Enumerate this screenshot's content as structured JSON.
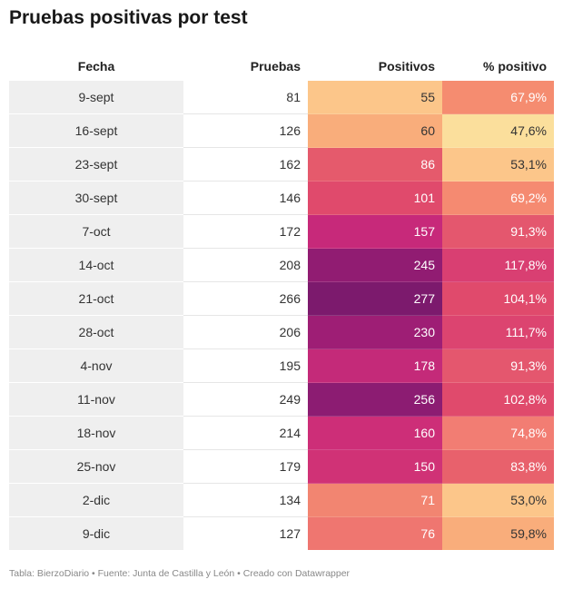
{
  "title": "Pruebas positivas por test",
  "footer": "Tabla: BierzoDiario • Fuente: Junta de Castilla y León • Creado con Datawrapper",
  "chart_data": {
    "type": "table",
    "title": "Pruebas positivas por test",
    "columns": [
      "Fecha",
      "Pruebas",
      "Positivos",
      "% positivo"
    ],
    "rows": [
      {
        "fecha": "9-sept",
        "pruebas": "81",
        "positivos": "55",
        "pct": "67,9%",
        "pos_color": "#fcc68a",
        "pct_color": "#f58c70"
      },
      {
        "fecha": "16-sept",
        "pruebas": "126",
        "positivos": "60",
        "pct": "47,6%",
        "pos_color": "#f9ad7b",
        "pct_color": "#fbdf9c"
      },
      {
        "fecha": "23-sept",
        "pruebas": "162",
        "positivos": "86",
        "pct": "53,1%",
        "pos_color": "#e55a6c",
        "pct_color": "#fcc68a"
      },
      {
        "fecha": "30-sept",
        "pruebas": "146",
        "positivos": "101",
        "pct": "69,2%",
        "pos_color": "#e04a6c",
        "pct_color": "#f58a71"
      },
      {
        "fecha": "7-oct",
        "pruebas": "172",
        "positivos": "157",
        "pct": "91,3%",
        "pos_color": "#c7297a",
        "pct_color": "#e4576e"
      },
      {
        "fecha": "14-oct",
        "pruebas": "208",
        "positivos": "245",
        "pct": "117,8%",
        "pos_color": "#911c72",
        "pct_color": "#d93f72"
      },
      {
        "fecha": "21-oct",
        "pruebas": "266",
        "positivos": "277",
        "pct": "104,1%",
        "pos_color": "#7c1a6d",
        "pct_color": "#e04a6c"
      },
      {
        "fecha": "28-oct",
        "pruebas": "206",
        "positivos": "230",
        "pct": "111,7%",
        "pos_color": "#9e1e75",
        "pct_color": "#dc4470"
      },
      {
        "fecha": "4-nov",
        "pruebas": "195",
        "positivos": "178",
        "pct": "91,3%",
        "pos_color": "#c42a79",
        "pct_color": "#e4576e"
      },
      {
        "fecha": "11-nov",
        "pruebas": "249",
        "positivos": "256",
        "pct": "102,8%",
        "pos_color": "#8c1c72",
        "pct_color": "#e04a6c"
      },
      {
        "fecha": "18-nov",
        "pruebas": "214",
        "positivos": "160",
        "pct": "74,8%",
        "pos_color": "#cd2e78",
        "pct_color": "#f27d73"
      },
      {
        "fecha": "25-nov",
        "pruebas": "179",
        "positivos": "150",
        "pct": "83,8%",
        "pos_color": "#d03276",
        "pct_color": "#e8616c"
      },
      {
        "fecha": "2-dic",
        "pruebas": "134",
        "positivos": "71",
        "pct": "53,0%",
        "pos_color": "#f28571",
        "pct_color": "#fcc68a"
      },
      {
        "fecha": "9-dic",
        "pruebas": "127",
        "positivos": "76",
        "pct": "59,8%",
        "pos_color": "#ef7670",
        "pct_color": "#f9ad7b"
      }
    ]
  }
}
